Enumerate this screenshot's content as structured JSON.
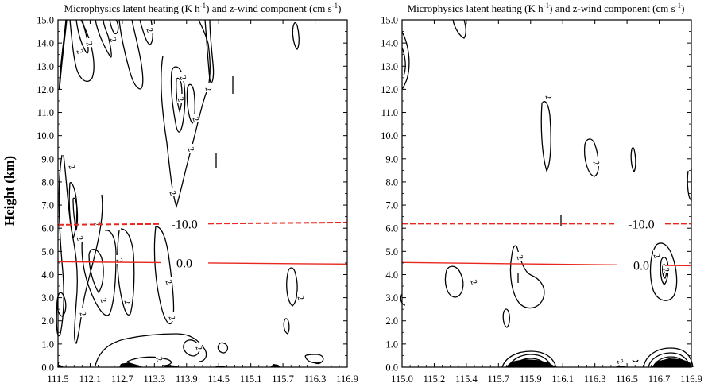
{
  "chart_data": [
    {
      "type": "contour",
      "title_main": "Microphysics latent heating (K h",
      "title_sup1": "-1",
      "title_mid": ") and z-wind component (cm s",
      "title_sup2": "-1",
      "title_end": ")",
      "ylabel": "Height (km)",
      "xlabel": "",
      "x_ticks": [
        "111.5",
        "112.1",
        "112.7",
        "113.3",
        "113.9",
        "114.5",
        "115.1",
        "115.7",
        "116.3",
        "116.9"
      ],
      "xlim": [
        111.5,
        116.9
      ],
      "y_ticks": [
        "0.0",
        "1.0",
        "2.0",
        "3.0",
        "4.0",
        "5.0",
        "6.0",
        "7.0",
        "8.0",
        "9.0",
        "10.0",
        "11.0",
        "12.0",
        "13.0",
        "14.0",
        "15.0"
      ],
      "ylim": [
        0,
        15
      ],
      "isotherms": [
        {
          "label": "-10.0",
          "style": "dashed",
          "color": "#e8281e",
          "y_start": 6.15,
          "y_end": 6.25,
          "label_x": 113.8
        },
        {
          "label": "0.0",
          "style": "solid",
          "color": "#e8281e",
          "y_start": 4.55,
          "y_end": 4.45,
          "label_x": 113.8
        }
      ],
      "contour_label_value": "2",
      "contour_color": "#000000"
    },
    {
      "type": "contour",
      "title_main": "Microphysics latent heating (K h",
      "title_sup1": "-1",
      "title_mid": ") and z-wind component (cm s",
      "title_sup2": "-1",
      "title_end": ")",
      "ylabel": "",
      "xlabel": "",
      "x_ticks": [
        "115.0",
        "115.2",
        "115.4",
        "115.7",
        "115.9",
        "116.1",
        "116.3",
        "116.5",
        "116.7",
        "116.9"
      ],
      "xlim": [
        115.0,
        116.9
      ],
      "y_ticks": [
        "0.0",
        "1.0",
        "2.0",
        "3.0",
        "4.0",
        "5.0",
        "6.0",
        "7.0",
        "8.0",
        "9.0",
        "10.0",
        "11.0",
        "12.0",
        "13.0",
        "14.0",
        "15.0"
      ],
      "ylim": [
        0,
        15
      ],
      "isotherms": [
        {
          "label": "-10.0",
          "style": "dashed",
          "color": "#e8281e",
          "y_start": 6.2,
          "y_end": 6.2,
          "label_x": 116.55
        },
        {
          "label": "0.0",
          "style": "solid",
          "color": "#e8281e",
          "y_start": 4.52,
          "y_end": 4.38,
          "label_x": 116.55
        }
      ],
      "contour_label_value": "2",
      "contour_color": "#000000"
    }
  ]
}
